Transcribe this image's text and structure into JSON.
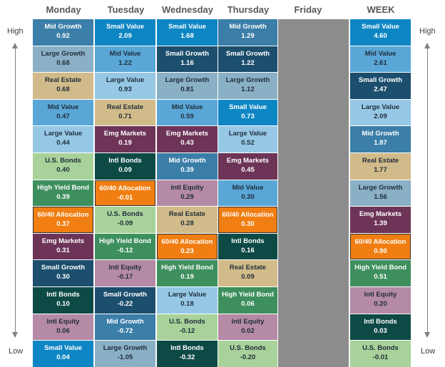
{
  "headers": [
    "Monday",
    "Tuesday",
    "Wednesday",
    "Thursday",
    "Friday",
    "WEEK"
  ],
  "side_labels": {
    "high": "High",
    "low": "Low"
  },
  "colors": {
    "Small Value": "#0e86c4",
    "Mid Value": "#5aa7d7",
    "Large Value": "#96c8e6",
    "Small Growth": "#1c4e6d",
    "Mid Growth": "#3b7ea8",
    "Large Growth": "#8ab0c6",
    "Real Estate": "#d2bb8a",
    "Emg Markets": "#6d3458",
    "Intl Equity": "#b48aa6",
    "Intl Bonds": "#0d4a45",
    "U.S. Bonds": "#a8d29a",
    "High Yield Bond": "#3e8f5e",
    "60/40 Allocation": "#f07e12"
  },
  "chart_data": {
    "type": "table",
    "ranking": "High to Low",
    "columns": [
      {
        "day": "Monday",
        "rows": [
          {
            "name": "Mid Growth",
            "value": "0.92"
          },
          {
            "name": "Large Growth",
            "value": "0.68"
          },
          {
            "name": "Real Estate",
            "value": "0.68"
          },
          {
            "name": "Mid Value",
            "value": "0.47"
          },
          {
            "name": "Large Value",
            "value": "0.44"
          },
          {
            "name": "U.S. Bonds",
            "value": "0.40"
          },
          {
            "name": "High Yield Bond",
            "value": "0.39"
          },
          {
            "name": "60/40 Allocation",
            "value": "0.37"
          },
          {
            "name": "Emg Markets",
            "value": "0.31"
          },
          {
            "name": "Small Growth",
            "value": "0.30"
          },
          {
            "name": "Intl Bonds",
            "value": "0.10"
          },
          {
            "name": "Intl Equity",
            "value": "0.06"
          },
          {
            "name": "Small Value",
            "value": "0.04"
          }
        ]
      },
      {
        "day": "Tuesday",
        "rows": [
          {
            "name": "Small Value",
            "value": "2.09"
          },
          {
            "name": "Mid Value",
            "value": "1.22"
          },
          {
            "name": "Large Value",
            "value": "0.93"
          },
          {
            "name": "Real Estate",
            "value": "0.71"
          },
          {
            "name": "Emg Markets",
            "value": "0.19"
          },
          {
            "name": "Intl Bonds",
            "value": "0.09"
          },
          {
            "name": "60/40 Allocation",
            "value": "-0.01"
          },
          {
            "name": "U.S. Bonds",
            "value": "-0.09"
          },
          {
            "name": "High Yield Bond",
            "value": "-0.12"
          },
          {
            "name": "Intl Equity",
            "value": "-0.17"
          },
          {
            "name": "Small Growth",
            "value": "-0.22"
          },
          {
            "name": "Mid Growth",
            "value": "-0.72"
          },
          {
            "name": "Large Growth",
            "value": "-1.05"
          }
        ]
      },
      {
        "day": "Wednesday",
        "rows": [
          {
            "name": "Small Value",
            "value": "1.68"
          },
          {
            "name": "Small Growth",
            "value": "1.16"
          },
          {
            "name": "Large Growth",
            "value": "0.81"
          },
          {
            "name": "Mid Value",
            "value": "0.59"
          },
          {
            "name": "Emg Markets",
            "value": "0.43"
          },
          {
            "name": "Mid Growth",
            "value": "0.39"
          },
          {
            "name": "Intl Equity",
            "value": "0.29"
          },
          {
            "name": "Real Estate",
            "value": "0.28"
          },
          {
            "name": "60/40 Allocation",
            "value": "0.23"
          },
          {
            "name": "High Yield Bond",
            "value": "0.19"
          },
          {
            "name": "Large Value",
            "value": "0.18"
          },
          {
            "name": "U.S. Bonds",
            "value": "-0.12"
          },
          {
            "name": "Intl Bonds",
            "value": "-0.32"
          }
        ]
      },
      {
        "day": "Thursday",
        "rows": [
          {
            "name": "Mid Growth",
            "value": "1.29"
          },
          {
            "name": "Small Growth",
            "value": "1.22"
          },
          {
            "name": "Large Growth",
            "value": "1.12"
          },
          {
            "name": "Small Value",
            "value": "0.73"
          },
          {
            "name": "Large Value",
            "value": "0.52"
          },
          {
            "name": "Emg Markets",
            "value": "0.45"
          },
          {
            "name": "Mid Value",
            "value": "0.30"
          },
          {
            "name": "60/40 Allocation",
            "value": "0.30"
          },
          {
            "name": "Intl Bonds",
            "value": "0.16"
          },
          {
            "name": "Real Estate",
            "value": "0.09"
          },
          {
            "name": "High Yield Bond",
            "value": "0.06"
          },
          {
            "name": "Intl Equity",
            "value": "0.02"
          },
          {
            "name": "U.S. Bonds",
            "value": "-0.20"
          }
        ]
      },
      {
        "day": "Friday",
        "rows": []
      },
      {
        "day": "WEEK",
        "rows": [
          {
            "name": "Small Value",
            "value": "4.60"
          },
          {
            "name": "Mid Value",
            "value": "2.61"
          },
          {
            "name": "Small Growth",
            "value": "2.47"
          },
          {
            "name": "Large Value",
            "value": "2.09"
          },
          {
            "name": "Mid Growth",
            "value": "1.87"
          },
          {
            "name": "Real Estate",
            "value": "1.77"
          },
          {
            "name": "Large Growth",
            "value": "1.56"
          },
          {
            "name": "Emg Markets",
            "value": "1.39"
          },
          {
            "name": "60/40 Allocation",
            "value": "0.90"
          },
          {
            "name": "High Yield Bond",
            "value": "0.51"
          },
          {
            "name": "Intl Equity",
            "value": "0.20"
          },
          {
            "name": "Intl Bonds",
            "value": "0.03"
          },
          {
            "name": "U.S. Bonds",
            "value": "-0.01"
          }
        ]
      }
    ]
  }
}
